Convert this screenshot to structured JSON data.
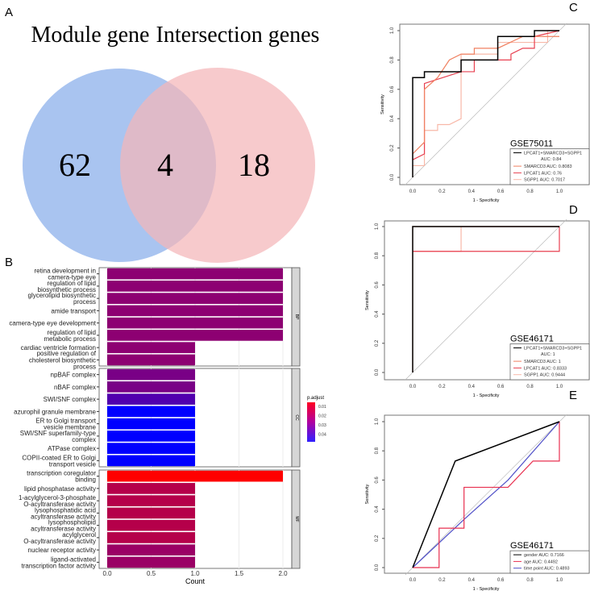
{
  "panels": {
    "A": "A",
    "B": "B",
    "C": "C",
    "D": "D",
    "E": "E"
  },
  "chart_data": [
    {
      "type": "venn",
      "panel": "A",
      "sets": [
        {
          "name": "Module gene",
          "only": 62,
          "color": "#A9C4F0"
        },
        {
          "name": "Intersection genes",
          "only": 18,
          "color": "#F4B6B8"
        }
      ],
      "intersection": 4
    },
    {
      "type": "bar",
      "panel": "B",
      "xlabel": "Count",
      "xlim": [
        0,
        2.1
      ],
      "xticks": [
        "0.0",
        "0.5",
        "1.0",
        "1.5",
        "2.0"
      ],
      "legend": {
        "title": "p.adjust",
        "ticks": [
          "0.01",
          "0.02",
          "0.03",
          "0.04"
        ]
      },
      "facets": [
        {
          "name": "BP",
          "rows": [
            {
              "term": [
                "retina development in",
                "camera-type eye"
              ],
              "count": 2,
              "padj": 0.025
            },
            {
              "term": [
                "regulation of lipid",
                "biosynthetic process"
              ],
              "count": 2,
              "padj": 0.025
            },
            {
              "term": [
                "glycerolipid biosynthetic",
                "process"
              ],
              "count": 2,
              "padj": 0.025
            },
            {
              "term": [
                "amide transport"
              ],
              "count": 2,
              "padj": 0.025
            },
            {
              "term": [
                "camera-type eye development"
              ],
              "count": 2,
              "padj": 0.025
            },
            {
              "term": [
                "regulation of lipid",
                "metabolic process"
              ],
              "count": 2,
              "padj": 0.025
            },
            {
              "term": [
                "cardiac ventricle formation"
              ],
              "count": 1,
              "padj": 0.025
            },
            {
              "term": [
                "positive regulation of",
                "cholesterol biosynthetic",
                "process"
              ],
              "count": 1,
              "padj": 0.025
            }
          ]
        },
        {
          "name": "CC",
          "rows": [
            {
              "term": [
                "npBAF complex"
              ],
              "count": 1,
              "padj": 0.028
            },
            {
              "term": [
                "nBAF complex"
              ],
              "count": 1,
              "padj": 0.028
            },
            {
              "term": [
                "SWI/SNF complex"
              ],
              "count": 1,
              "padj": 0.034
            },
            {
              "term": [
                "azurophil granule membrane"
              ],
              "count": 1,
              "padj": 0.046
            },
            {
              "term": [
                "ER to Golgi transport",
                "vesicle membrane"
              ],
              "count": 1,
              "padj": 0.046
            },
            {
              "term": [
                "SWI/SNF superfamily-type",
                "complex"
              ],
              "count": 1,
              "padj": 0.046
            },
            {
              "term": [
                "ATPase complex"
              ],
              "count": 1,
              "padj": 0.046
            },
            {
              "term": [
                "COPII-coated ER to Golgi",
                "transport vesicle"
              ],
              "count": 1,
              "padj": 0.046
            }
          ]
        },
        {
          "name": "MF",
          "rows": [
            {
              "term": [
                "transcription coregulator",
                "binding"
              ],
              "count": 2,
              "padj": 0.008
            },
            {
              "term": [
                "lipid phosphatase activity"
              ],
              "count": 1,
              "padj": 0.019
            },
            {
              "term": [
                "1-acylglycerol-3-phosphate",
                "O-acyltransferase activity"
              ],
              "count": 1,
              "padj": 0.019
            },
            {
              "term": [
                "lysophosphatidic acid",
                "acyltransferase activity"
              ],
              "count": 1,
              "padj": 0.019
            },
            {
              "term": [
                "lysophospholipid",
                "acyltransferase activity"
              ],
              "count": 1,
              "padj": 0.019
            },
            {
              "term": [
                "acylglycerol",
                "O-acyltransferase activity"
              ],
              "count": 1,
              "padj": 0.019
            },
            {
              "term": [
                "nuclear receptor activity"
              ],
              "count": 1,
              "padj": 0.023
            },
            {
              "term": [
                "ligand-activated",
                "transcription factor activity"
              ],
              "count": 1,
              "padj": 0.023
            }
          ]
        }
      ]
    },
    {
      "type": "line",
      "panel": "C",
      "title": "GSE75011",
      "xlabel": "1 - Specificity",
      "ylabel": "Sensitivity",
      "ticks": [
        "0.0",
        "0.2",
        "0.4",
        "0.6",
        "0.8",
        "1.0"
      ],
      "series": [
        {
          "name": "LPCAT1+SMARCD3+SGPP1",
          "auc": "AUC: 0.84",
          "color": "#000000",
          "points": [
            [
              0,
              0
            ],
            [
              0,
              0.68
            ],
            [
              0.08,
              0.68
            ],
            [
              0.08,
              0.72
            ],
            [
              0.33,
              0.72
            ],
            [
              0.33,
              0.8
            ],
            [
              0.58,
              0.8
            ],
            [
              0.58,
              0.96
            ],
            [
              0.83,
              0.96
            ],
            [
              0.83,
              1
            ],
            [
              1,
              1
            ]
          ]
        },
        {
          "name": "SMARCD3 AUC: 0.8083",
          "color": "#F08060",
          "points": [
            [
              0,
              0.12
            ],
            [
              0,
              0.16
            ],
            [
              0.08,
              0.24
            ],
            [
              0.08,
              0.6
            ],
            [
              0.17,
              0.68
            ],
            [
              0.25,
              0.8
            ],
            [
              0.33,
              0.84
            ],
            [
              0.42,
              0.84
            ],
            [
              0.42,
              0.88
            ],
            [
              0.58,
              0.88
            ],
            [
              0.75,
              0.96
            ],
            [
              1,
              0.96
            ]
          ]
        },
        {
          "name": "LPCAT1 AUC: 0.76",
          "color": "#E84050",
          "points": [
            [
              0,
              0.12
            ],
            [
              0.08,
              0.16
            ],
            [
              0.08,
              0.64
            ],
            [
              0.33,
              0.72
            ],
            [
              0.42,
              0.72
            ],
            [
              0.42,
              0.8
            ],
            [
              0.58,
              0.8
            ],
            [
              0.67,
              0.8
            ],
            [
              0.67,
              0.84
            ],
            [
              0.75,
              0.88
            ],
            [
              0.83,
              0.88
            ],
            [
              0.83,
              0.96
            ],
            [
              1,
              1
            ]
          ]
        },
        {
          "name": "SGPP1 AUC: 0.7017",
          "color": "#F8B8A8",
          "points": [
            [
              0,
              0
            ],
            [
              0,
              0.08
            ],
            [
              0.08,
              0.08
            ],
            [
              0.08,
              0.32
            ],
            [
              0.17,
              0.32
            ],
            [
              0.17,
              0.36
            ],
            [
              0.25,
              0.36
            ],
            [
              0.33,
              0.4
            ],
            [
              0.33,
              0.84
            ],
            [
              0.58,
              0.84
            ],
            [
              0.58,
              0.92
            ],
            [
              0.92,
              0.92
            ],
            [
              0.92,
              1
            ],
            [
              1,
              1
            ]
          ]
        }
      ]
    },
    {
      "type": "line",
      "panel": "D",
      "title": "GSE46171",
      "xlabel": "1 - Specificity",
      "ylabel": "Sensitivity",
      "ticks": [
        "0.0",
        "0.2",
        "0.4",
        "0.6",
        "0.8",
        "1.0"
      ],
      "series": [
        {
          "name": "LPCAT1+SMARCD3+SGPP1",
          "auc": "AUC: 1",
          "color": "#000000",
          "points": [
            [
              0,
              0
            ],
            [
              0,
              1
            ],
            [
              1,
              1
            ]
          ]
        },
        {
          "name": "SMARCD3 AUC: 1",
          "color": "#F08060",
          "points": [
            [
              0,
              0
            ],
            [
              0,
              1
            ],
            [
              1,
              1
            ]
          ]
        },
        {
          "name": "LPCAT1 AUC: 0.8333",
          "color": "#E84050",
          "points": [
            [
              0,
              0.83
            ],
            [
              0.33,
              0.83
            ],
            [
              1,
              0.83
            ],
            [
              1,
              1
            ]
          ]
        },
        {
          "name": "SGPP1 AUC: 0.9444",
          "color": "#F8B8A8",
          "points": [
            [
              0,
              0.83
            ],
            [
              0.33,
              0.83
            ],
            [
              0.33,
              1
            ],
            [
              1,
              1
            ]
          ]
        }
      ]
    },
    {
      "type": "line",
      "panel": "E",
      "title": "GSE46171",
      "xlabel": "1 - Specificity",
      "ylabel": "Sensitivity",
      "ticks": [
        "0.0",
        "0.2",
        "0.4",
        "0.6",
        "0.8",
        "1.0"
      ],
      "series": [
        {
          "name": "gender AUC: 0.7166",
          "color": "#000000",
          "points": [
            [
              0,
              0
            ],
            [
              0.29,
              0.73
            ],
            [
              1,
              1
            ]
          ]
        },
        {
          "name": "age AUC: 0.4492",
          "color": "#E83050",
          "points": [
            [
              0,
              0
            ],
            [
              0.18,
              0
            ],
            [
              0.18,
              0.27
            ],
            [
              0.35,
              0.27
            ],
            [
              0.35,
              0.55
            ],
            [
              0.65,
              0.55
            ],
            [
              0.82,
              0.73
            ],
            [
              1,
              0.73
            ],
            [
              1,
              1
            ]
          ]
        },
        {
          "name": "time.point AUC: 0.4893",
          "color": "#5050C8",
          "points": [
            [
              0,
              0
            ],
            [
              0.35,
              0.33
            ],
            [
              0.65,
              0.6
            ],
            [
              1,
              1
            ]
          ]
        }
      ]
    }
  ]
}
